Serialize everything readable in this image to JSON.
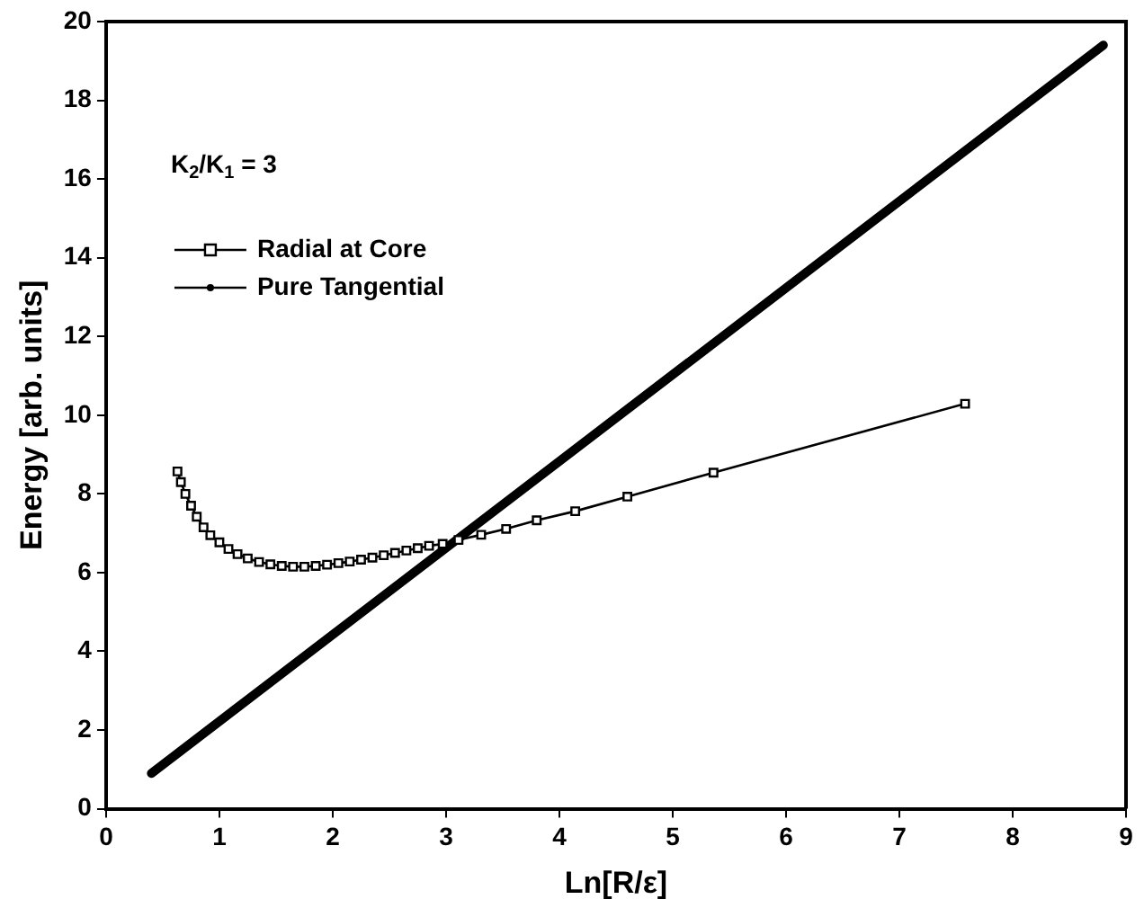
{
  "chart_data": {
    "type": "line",
    "xlabel": "Ln[R/ε]",
    "ylabel": "Energy [arb. units]",
    "legend_title": "K$_{2}$/K$_{1}$ = 3",
    "legend": "top left",
    "grid": false,
    "xlim": [
      0,
      9
    ],
    "xticks": [
      0,
      1,
      2,
      3,
      4,
      5,
      6,
      7,
      8,
      9
    ],
    "ylim": [
      0,
      20
    ],
    "yticks": [
      0,
      2,
      4,
      6,
      8,
      10,
      12,
      14,
      16,
      18,
      20
    ],
    "series": [
      {
        "name": "Radial at Core",
        "color": "#000000",
        "marker": "square",
        "line_style": "solid",
        "x": [
          0.63,
          0.66,
          0.7,
          0.75,
          0.8,
          0.86,
          0.92,
          1.0,
          1.08,
          1.16,
          1.25,
          1.35,
          1.45,
          1.55,
          1.65,
          1.75,
          1.85,
          1.95,
          2.05,
          2.15,
          2.25,
          2.35,
          2.45,
          2.55,
          2.65,
          2.75,
          2.85,
          2.97,
          3.11,
          3.31,
          3.53,
          3.8,
          4.14,
          4.6,
          5.36,
          7.58
        ],
        "values": [
          8.57,
          8.3,
          8.0,
          7.7,
          7.42,
          7.15,
          6.95,
          6.77,
          6.6,
          6.47,
          6.36,
          6.27,
          6.21,
          6.17,
          6.15,
          6.15,
          6.17,
          6.2,
          6.24,
          6.28,
          6.33,
          6.38,
          6.44,
          6.5,
          6.56,
          6.62,
          6.68,
          6.73,
          6.83,
          6.96,
          7.11,
          7.33,
          7.56,
          7.93,
          8.54,
          10.29
        ]
      },
      {
        "name": "Pure Tangential",
        "color": "#000000",
        "marker": "circle",
        "line_style": "solid",
        "x": [
          0.4,
          8.8
        ],
        "values": [
          0.9,
          19.4
        ]
      }
    ]
  }
}
